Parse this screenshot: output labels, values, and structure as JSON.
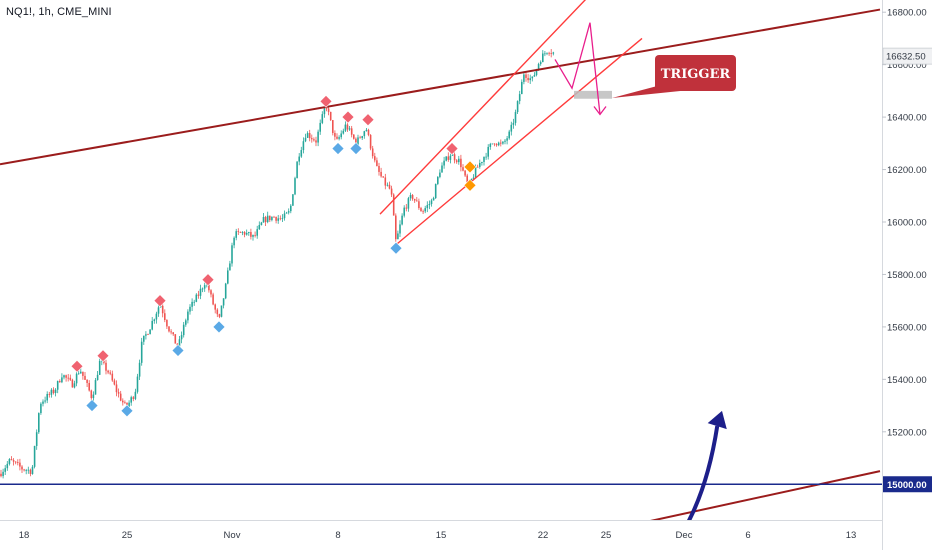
{
  "header": {
    "symbol": "NQ1!, 1h, CME_MINI"
  },
  "price_axis": {
    "ticks": [
      "16800.00",
      "16600.00",
      "16400.00",
      "16200.00",
      "16000.00",
      "15800.00",
      "15600.00",
      "15400.00",
      "15200.00"
    ],
    "tick_values": [
      16800,
      16600,
      16400,
      16200,
      16000,
      15800,
      15600,
      15400,
      15200
    ],
    "current_price_label": "16632.50",
    "current_price": 16632.5,
    "level_label": "15000.00",
    "level_value": 15000
  },
  "time_axis": {
    "labels": [
      "18",
      "25",
      "Nov",
      "8",
      "15",
      "22",
      "25",
      "Dec",
      "6",
      "13"
    ]
  },
  "annotation": {
    "trigger_label": "TRIGGER"
  },
  "colors": {
    "up": "#26a69a",
    "down": "#ef5350",
    "trend_line": "#9b1c1c",
    "channel_line": "#ff3b3b",
    "level_line": "#1a2a8c",
    "blue_arrow": "#1d1f8a",
    "pink_path": "#e91e8c",
    "trigger_box": "#c0313b",
    "marker_high": "#f06270",
    "marker_low": "#5aa9e6",
    "marker_mid": "#ff9800"
  },
  "chart_data": {
    "type": "candlestick",
    "instrument": "NQ1!",
    "interval": "1h",
    "exchange": "CME_MINI",
    "y_range": [
      14700,
      16900
    ],
    "price_path": [
      [
        0,
        15040
      ],
      [
        10,
        15090
      ],
      [
        22,
        15060
      ],
      [
        32,
        15050
      ],
      [
        40,
        15310
      ],
      [
        55,
        15360
      ],
      [
        62,
        15420
      ],
      [
        72,
        15380
      ],
      [
        80,
        15440
      ],
      [
        92,
        15330
      ],
      [
        100,
        15470
      ],
      [
        108,
        15430
      ],
      [
        116,
        15360
      ],
      [
        126,
        15290
      ],
      [
        135,
        15350
      ],
      [
        142,
        15540
      ],
      [
        150,
        15600
      ],
      [
        160,
        15690
      ],
      [
        168,
        15600
      ],
      [
        178,
        15520
      ],
      [
        188,
        15660
      ],
      [
        198,
        15720
      ],
      [
        206,
        15780
      ],
      [
        212,
        15700
      ],
      [
        219,
        15620
      ],
      [
        226,
        15760
      ],
      [
        234,
        15950
      ],
      [
        244,
        15960
      ],
      [
        254,
        15940
      ],
      [
        264,
        16010
      ],
      [
        274,
        16020
      ],
      [
        282,
        16010
      ],
      [
        290,
        16040
      ],
      [
        298,
        16250
      ],
      [
        306,
        16340
      ],
      [
        316,
        16310
      ],
      [
        326,
        16450
      ],
      [
        336,
        16300
      ],
      [
        346,
        16370
      ],
      [
        356,
        16300
      ],
      [
        366,
        16360
      ],
      [
        376,
        16210
      ],
      [
        384,
        16150
      ],
      [
        391,
        16120
      ],
      [
        396,
        15920
      ],
      [
        404,
        16050
      ],
      [
        412,
        16100
      ],
      [
        422,
        16040
      ],
      [
        432,
        16080
      ],
      [
        440,
        16200
      ],
      [
        450,
        16260
      ],
      [
        460,
        16230
      ],
      [
        468,
        16130
      ],
      [
        476,
        16200
      ],
      [
        484,
        16250
      ],
      [
        494,
        16310
      ],
      [
        502,
        16290
      ],
      [
        510,
        16340
      ],
      [
        516,
        16420
      ],
      [
        524,
        16570
      ],
      [
        532,
        16540
      ],
      [
        540,
        16620
      ],
      [
        548,
        16660
      ],
      [
        555,
        16640
      ]
    ],
    "markers_high": [
      [
        77,
        15450
      ],
      [
        103,
        15490
      ],
      [
        160,
        15700
      ],
      [
        208,
        15780
      ],
      [
        326,
        16460
      ],
      [
        348,
        16400
      ],
      [
        368,
        16390
      ],
      [
        452,
        16280
      ]
    ],
    "markers_low": [
      [
        92,
        15300
      ],
      [
        127,
        15280
      ],
      [
        178,
        15510
      ],
      [
        219,
        15600
      ],
      [
        338,
        16280
      ],
      [
        356,
        16280
      ],
      [
        396,
        15900
      ]
    ],
    "markers_mid": [
      [
        470,
        16210
      ],
      [
        470,
        16140
      ]
    ],
    "lines": {
      "major_trend": [
        [
          0,
          16220
        ],
        [
          880,
          16810
        ]
      ],
      "lower_trend": [
        [
          590,
          14810
        ],
        [
          880,
          15050
        ]
      ],
      "channel_upper": [
        [
          380,
          16030
        ],
        [
          596,
          16890
        ]
      ],
      "channel_lower": [
        [
          395,
          15910
        ],
        [
          642,
          16700
        ]
      ],
      "horizontal_level": 15000
    },
    "projection_path": [
      [
        555,
        16620
      ],
      [
        572,
        16510
      ],
      [
        590,
        16760
      ],
      [
        600,
        16410
      ]
    ],
    "trigger_zone": [
      [
        574,
        16500
      ],
      [
        612,
        16470
      ]
    ],
    "blue_arrow": [
      [
        686,
        14840
      ],
      [
        722,
        15280
      ]
    ]
  }
}
